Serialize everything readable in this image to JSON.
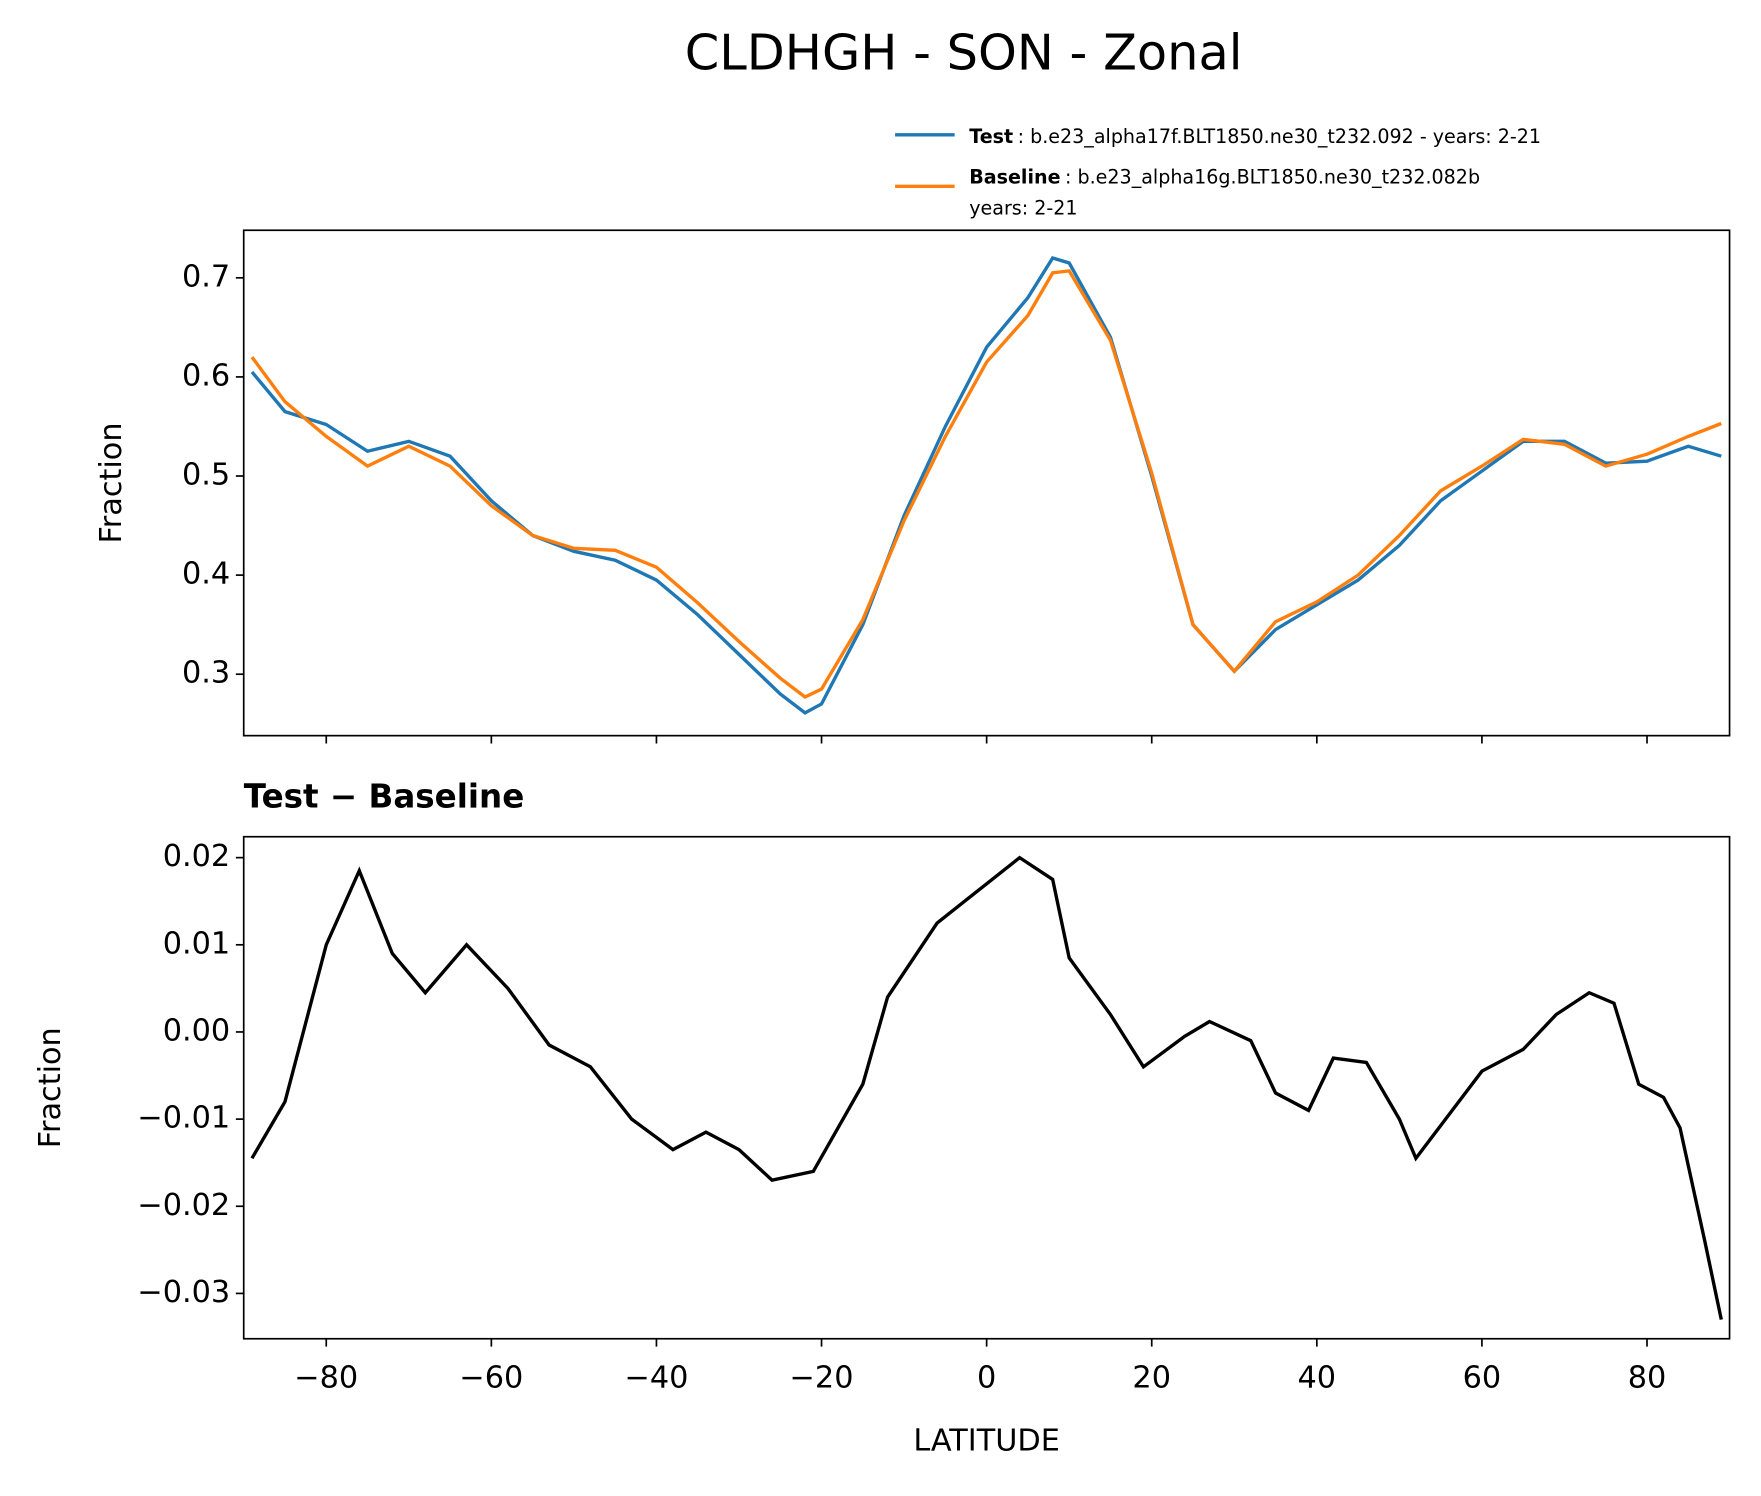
{
  "chart_data": [
    {
      "type": "line",
      "title": "CLDHGH - SON - Zonal",
      "ylabel": "Fraction",
      "shared_x": true,
      "x": [
        -89,
        -85,
        -80,
        -75,
        -70,
        -65,
        -60,
        -55,
        -50,
        -45,
        -40,
        -35,
        -30,
        -25,
        -22,
        -20,
        -15,
        -10,
        -5,
        0,
        5,
        8,
        10,
        15,
        20,
        25,
        30,
        35,
        40,
        45,
        50,
        55,
        60,
        65,
        70,
        75,
        80,
        85,
        89
      ],
      "series": [
        {
          "name": "Test",
          "description": [
            ": b.e23_alpha17f.BLT1850.ne30_t232.092 - years: 2-21"
          ],
          "color": "#1f77b4",
          "values": [
            0.605,
            0.565,
            0.552,
            0.525,
            0.535,
            0.52,
            0.475,
            0.44,
            0.424,
            0.415,
            0.395,
            0.36,
            0.32,
            0.28,
            0.261,
            0.27,
            0.35,
            0.46,
            0.55,
            0.63,
            0.68,
            0.72,
            0.715,
            0.64,
            0.5,
            0.35,
            0.303,
            0.345,
            0.37,
            0.395,
            0.43,
            0.475,
            0.505,
            0.535,
            0.535,
            0.513,
            0.515,
            0.53,
            0.52
          ]
        },
        {
          "name": "Baseline",
          "description": [
            ": b.e23_alpha16g.BLT1850.ne30_t232.082b",
            "years: 2-21"
          ],
          "color": "#ff7f0e",
          "values": [
            0.62,
            0.575,
            0.54,
            0.51,
            0.53,
            0.51,
            0.47,
            0.44,
            0.427,
            0.425,
            0.408,
            0.372,
            0.333,
            0.296,
            0.277,
            0.285,
            0.355,
            0.455,
            0.54,
            0.615,
            0.662,
            0.705,
            0.707,
            0.637,
            0.503,
            0.35,
            0.303,
            0.353,
            0.373,
            0.4,
            0.44,
            0.485,
            0.51,
            0.537,
            0.532,
            0.51,
            0.522,
            0.54,
            0.553
          ]
        }
      ],
      "xlim": [
        -90,
        90
      ],
      "xticks": [
        -80,
        -60,
        -40,
        -20,
        0,
        20,
        40,
        60,
        80
      ],
      "ylim": [
        0.238,
        0.748
      ],
      "yticks": [
        0.3,
        0.4,
        0.5,
        0.6,
        0.7
      ]
    },
    {
      "type": "line",
      "title": "Test − Baseline",
      "xlabel": "LATITUDE",
      "ylabel": "Fraction",
      "x": [
        -89,
        -85,
        -80,
        -76,
        -72,
        -68,
        -63,
        -58,
        -53,
        -48,
        -43,
        -38,
        -34,
        -30,
        -26,
        -21,
        -15,
        -12,
        -6,
        0,
        4,
        8,
        10,
        15,
        19,
        24,
        27,
        32,
        35,
        39,
        42,
        46,
        50,
        52,
        56,
        60,
        65,
        69,
        73,
        76,
        79,
        82,
        84,
        87,
        89
      ],
      "series": [
        {
          "color": "#000000",
          "values": [
            -0.0145,
            -0.008,
            0.01,
            0.0185,
            0.009,
            0.0045,
            0.01,
            0.005,
            -0.0015,
            -0.004,
            -0.01,
            -0.0135,
            -0.0115,
            -0.0135,
            -0.017,
            -0.016,
            -0.006,
            0.004,
            0.0125,
            0.017,
            0.02,
            0.0175,
            0.0085,
            0.002,
            -0.004,
            -0.0005,
            0.0012,
            -0.001,
            -0.007,
            -0.009,
            -0.003,
            -0.0035,
            -0.01,
            -0.0145,
            -0.0095,
            -0.0045,
            -0.002,
            0.002,
            0.0045,
            0.0033,
            -0.006,
            -0.0075,
            -0.011,
            -0.024,
            -0.033
          ]
        }
      ],
      "xlim": [
        -90,
        90
      ],
      "xticks": [
        {
          "value": -80,
          "label": "−80"
        },
        {
          "value": -60,
          "label": "−60"
        },
        {
          "value": -40,
          "label": "−40"
        },
        {
          "value": -20,
          "label": "−20"
        },
        0,
        20,
        40,
        60,
        80
      ],
      "ylim": [
        -0.0352,
        0.0224
      ],
      "yticks": [
        {
          "value": -0.03,
          "label": "−0.03"
        },
        {
          "value": -0.02,
          "label": "−0.02"
        },
        {
          "value": -0.01,
          "label": "−0.01"
        },
        {
          "value": 0,
          "label": "0.00"
        },
        0.01,
        0.02
      ]
    }
  ]
}
